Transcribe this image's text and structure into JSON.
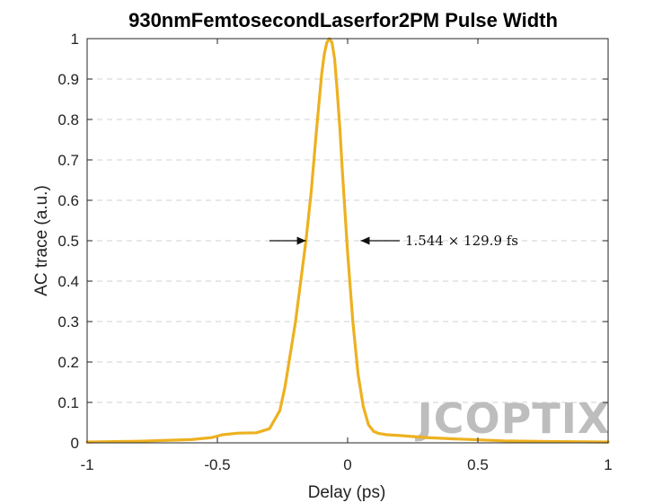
{
  "chart_data": {
    "type": "line",
    "title": "930nmFemtosecondLaserfor2PM Pulse Width",
    "xlabel": "Delay (ps)",
    "ylabel": "AC trace (a.u.)",
    "xlim": [
      -1,
      1
    ],
    "ylim": [
      0,
      1
    ],
    "xticks": [
      "-1",
      "-0.5",
      "0",
      "0.5",
      "1"
    ],
    "yticks": [
      "0",
      "0.1",
      "0.2",
      "0.3",
      "0.4",
      "0.5",
      "0.6",
      "0.7",
      "0.8",
      "0.9",
      "1"
    ],
    "grid": "horizontal-dashed",
    "line_color": "#EDB120",
    "series": [
      {
        "x": [
          -1.0,
          -0.8,
          -0.6,
          -0.52,
          -0.48,
          -0.42,
          -0.35,
          -0.3,
          -0.26,
          -0.24,
          -0.22,
          -0.2,
          -0.18,
          -0.16,
          -0.14,
          -0.12,
          -0.1,
          -0.09,
          -0.08,
          -0.07,
          -0.06,
          -0.05,
          -0.04,
          -0.03,
          -0.02,
          -0.01,
          0.0,
          0.02,
          0.04,
          0.06,
          0.08,
          0.1,
          0.12,
          0.15,
          0.2,
          0.3,
          0.4,
          0.6,
          0.8,
          1.0
        ],
        "y": [
          0.002,
          0.004,
          0.008,
          0.013,
          0.02,
          0.024,
          0.025,
          0.035,
          0.08,
          0.14,
          0.22,
          0.3,
          0.4,
          0.5,
          0.62,
          0.77,
          0.91,
          0.96,
          0.99,
          1.0,
          0.99,
          0.95,
          0.87,
          0.78,
          0.67,
          0.57,
          0.47,
          0.3,
          0.17,
          0.09,
          0.045,
          0.028,
          0.023,
          0.02,
          0.018,
          0.013,
          0.01,
          0.005,
          0.003,
          0.002
        ]
      }
    ],
    "annotation": {
      "text": "1.544 × 129.9 fs",
      "y": 0.5,
      "left_arrow_x": [
        -0.3,
        -0.16
      ],
      "right_arrow_x": [
        0.2,
        0.05
      ]
    }
  },
  "watermark": "JCOPTIX"
}
